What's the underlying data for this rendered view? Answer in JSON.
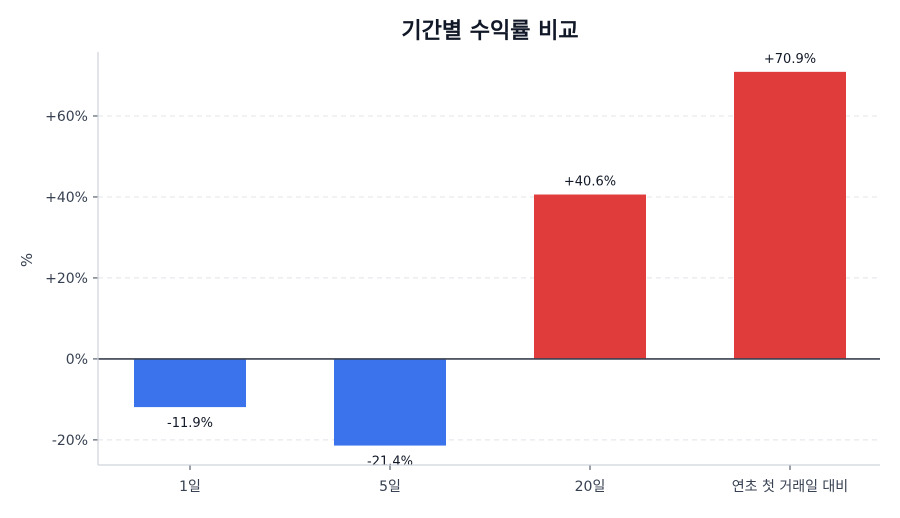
{
  "chart_data": {
    "type": "bar",
    "title": "기간별 수익률 비교",
    "xlabel": "",
    "ylabel": "%",
    "categories": [
      "1일",
      "5일",
      "20일",
      "연초 첫 거래일 대비"
    ],
    "values": [
      -11.9,
      -21.4,
      40.6,
      70.9
    ],
    "data_labels": [
      "-11.9%",
      "-21.4%",
      "+40.6%",
      "+70.9%"
    ],
    "ylim": [
      -26.2,
      75.8
    ],
    "yticks": [
      -20,
      0,
      20,
      40,
      60
    ],
    "ytick_labels": [
      "-20%",
      "0%",
      "+20%",
      "+40%",
      "+60%"
    ],
    "grid": "horizontal dashed",
    "colors": {
      "positive": "#e03c3c",
      "negative": "#3b73ec",
      "zero_line": "#3a4150",
      "grid": "#e2e4ea",
      "axis": "#cfd3dc",
      "text": "#374151",
      "title": "#111827"
    }
  }
}
